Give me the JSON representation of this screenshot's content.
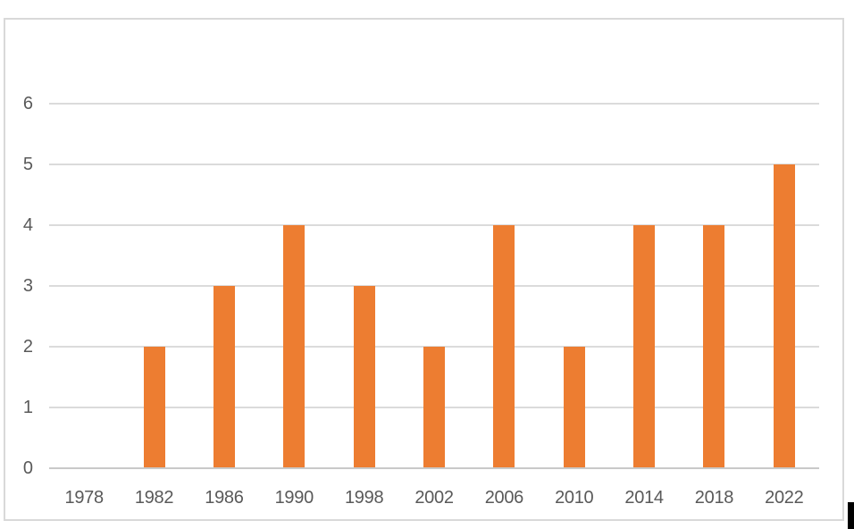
{
  "window": {
    "background": "#FFFFFF"
  },
  "chart_data": {
    "type": "bar",
    "title": "",
    "xlabel": "",
    "ylabel": "",
    "categories": [
      "1978",
      "1982",
      "1986",
      "1990",
      "1998",
      "2002",
      "2006",
      "2010",
      "2014",
      "2018",
      "2022"
    ],
    "series": [
      {
        "name": "",
        "values": [
          0,
          2,
          3,
          4,
          3,
          2,
          4,
          2,
          4,
          4,
          5
        ]
      }
    ],
    "values": [
      0,
      2,
      3,
      4,
      3,
      2,
      4,
      2,
      4,
      4,
      5
    ],
    "y_ticks": [
      0,
      1,
      2,
      3,
      4,
      5,
      6
    ],
    "ylim": [
      0,
      6
    ],
    "grid": true,
    "legend": "none",
    "colors": {
      "bar": "#ED7D31",
      "gridline": "#DBDBDB",
      "axis_line": "#C9C9C9",
      "tick_label": "#595959",
      "frame_border": "#D9D9D9",
      "plot_background": "#FFFFFF"
    }
  },
  "cursor_mark": {
    "color": "#000000"
  }
}
